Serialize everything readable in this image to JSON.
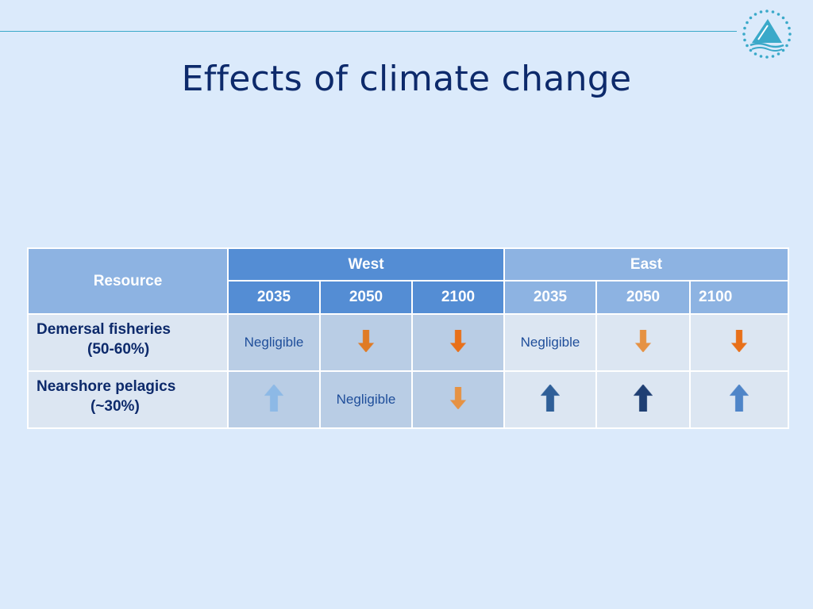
{
  "slide": {
    "title": "Effects of climate change"
  },
  "table": {
    "header": {
      "resource": "Resource",
      "west": "West",
      "east": "East",
      "years": [
        "2035",
        "2050",
        "2100",
        "2035",
        "2050",
        "2100"
      ]
    },
    "rows": [
      {
        "resource_line1": "Demersal fisheries",
        "resource_line2": "(50-60%)",
        "cells": [
          {
            "text": "Negligible"
          },
          {
            "arrow": "down",
            "color": "#e07b25"
          },
          {
            "arrow": "down",
            "color": "#e8701a"
          },
          {
            "text": "Negligible"
          },
          {
            "arrow": "down",
            "color": "#e69243"
          },
          {
            "arrow": "down",
            "color": "#e8701a"
          }
        ]
      },
      {
        "resource_line1": "Nearshore pelagics",
        "resource_line2": "(~30%)",
        "cells": [
          {
            "arrow": "up",
            "color": "#8db9e6"
          },
          {
            "text": "Negligible"
          },
          {
            "arrow": "down",
            "color": "#e69243"
          },
          {
            "arrow": "up",
            "color": "#2f5f98"
          },
          {
            "arrow": "up",
            "color": "#1f3f73"
          },
          {
            "arrow": "up",
            "color": "#4f85c8"
          }
        ]
      }
    ]
  },
  "colors": {
    "background": "#dbeafb",
    "title": "#0d2a6b",
    "west_header": "#548dd4",
    "east_header": "#8db3e2"
  }
}
